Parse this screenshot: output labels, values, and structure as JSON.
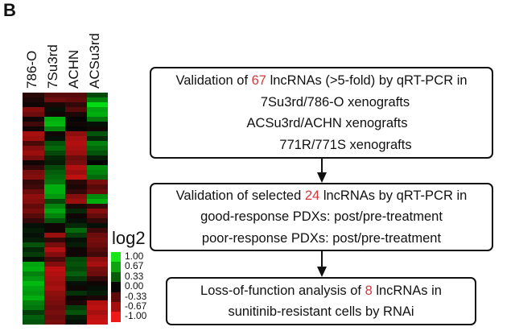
{
  "panel_label": "B",
  "heatmap": {
    "columns": [
      "786-O",
      "7Su3rd",
      "ACHN",
      "ACSu3rd"
    ],
    "rows": [
      [
        -0.15,
        -0.35,
        -0.35,
        0.3
      ],
      [
        -0.1,
        -0.45,
        -0.4,
        0.55
      ],
      [
        -0.05,
        -0.1,
        -0.2,
        0.95
      ],
      [
        -0.55,
        0.05,
        -0.35,
        0.7
      ],
      [
        -0.45,
        -0.05,
        -0.1,
        0.75
      ],
      [
        -0.05,
        0.75,
        0.0,
        0.5
      ],
      [
        -0.25,
        0.8,
        -0.05,
        0.05
      ],
      [
        -0.05,
        0.55,
        0.0,
        -0.05
      ],
      [
        -0.7,
        -0.05,
        -0.6,
        0.35
      ],
      [
        -0.65,
        0.05,
        -0.7,
        0.15
      ],
      [
        -0.3,
        0.35,
        -0.75,
        0.55
      ],
      [
        -0.55,
        0.45,
        -0.7,
        0.45
      ],
      [
        -0.65,
        0.3,
        -0.65,
        0.35
      ],
      [
        -0.5,
        0.15,
        -0.45,
        0.1
      ],
      [
        -0.05,
        0.1,
        -0.5,
        0.0
      ],
      [
        -0.2,
        0.3,
        -0.75,
        0.6
      ],
      [
        -0.5,
        0.4,
        -0.65,
        0.55
      ],
      [
        -0.55,
        0.45,
        -0.8,
        0.45
      ],
      [
        -0.2,
        0.5,
        -0.15,
        -0.5
      ],
      [
        -0.25,
        0.75,
        -0.1,
        -0.35
      ],
      [
        -0.45,
        0.75,
        -0.2,
        -0.45
      ],
      [
        -0.6,
        0.65,
        -0.55,
        0.6
      ],
      [
        -0.55,
        0.3,
        -0.65,
        0.75
      ],
      [
        -0.4,
        0.55,
        -0.1,
        -0.2
      ],
      [
        -0.5,
        0.7,
        0.15,
        -0.55
      ],
      [
        -0.35,
        0.55,
        -0.05,
        -0.4
      ],
      [
        -0.2,
        0.35,
        0.05,
        -0.2
      ],
      [
        0.05,
        -0.05,
        0.15,
        0.05
      ],
      [
        0.1,
        -0.05,
        0.45,
        -0.25
      ],
      [
        0.05,
        -0.65,
        0.25,
        -0.45
      ],
      [
        0.1,
        -0.2,
        0.05,
        -0.5
      ],
      [
        0.35,
        -0.5,
        0.1,
        -0.45
      ],
      [
        0.15,
        -0.75,
        -0.05,
        -0.35
      ],
      [
        0.25,
        -0.55,
        -0.05,
        -0.25
      ],
      [
        0.05,
        -0.3,
        0.3,
        -0.6
      ],
      [
        0.7,
        -0.55,
        0.35,
        -0.7
      ],
      [
        0.75,
        -0.8,
        0.3,
        -0.5
      ],
      [
        0.55,
        -0.75,
        0.4,
        -0.45
      ],
      [
        0.65,
        -0.7,
        0.25,
        -0.2
      ],
      [
        0.8,
        -0.65,
        0.05,
        -0.05
      ],
      [
        0.7,
        -0.7,
        -0.05,
        0.05
      ],
      [
        0.65,
        -0.6,
        0.2,
        0.1
      ],
      [
        0.75,
        -0.55,
        -0.05,
        -0.1
      ],
      [
        0.55,
        -0.5,
        -0.1,
        -0.75
      ],
      [
        0.5,
        -0.45,
        0.25,
        -0.8
      ],
      [
        0.25,
        -0.5,
        0.35,
        -0.7
      ],
      [
        0.4,
        -0.45,
        0.1,
        -0.8
      ],
      [
        0.35,
        -0.5,
        0.05,
        -0.85
      ]
    ]
  },
  "legend": {
    "title": "log2",
    "items": [
      {
        "label": "1.00",
        "color": "#19e619"
      },
      {
        "label": "0.67",
        "color": "#0fa30f"
      },
      {
        "label": "0.33",
        "color": "#0a5c0a"
      },
      {
        "label": "0.00",
        "color": "#050505"
      },
      {
        "label": "-0.33",
        "color": "#5c0a0a"
      },
      {
        "label": "-0.67",
        "color": "#a30f0f"
      },
      {
        "label": "-1.00",
        "color": "#ee1a1a"
      }
    ]
  },
  "flowchart": {
    "highlight_color": "#d0393c",
    "boxes": [
      {
        "lines": [
          {
            "pre": "Validation of ",
            "num": "67",
            "post": " lncRNAs (>5-fold) by qRT-PCR in"
          },
          {
            "pre": "7Su3rd/786-O xenografts",
            "num": "",
            "post": ""
          },
          {
            "pre": "ACSu3rd/ACHN xenografts",
            "num": "",
            "post": ""
          },
          {
            "pre": "771R/771S xenografts",
            "num": "",
            "post": ""
          }
        ]
      },
      {
        "lines": [
          {
            "pre": "Validation of selected ",
            "num": "24",
            "post": " lncRNAs by qRT-PCR in"
          },
          {
            "pre": "good-response PDXs: post/pre-treatment",
            "num": "",
            "post": ""
          },
          {
            "pre": "poor-response PDXs: post/pre-treatment",
            "num": "",
            "post": ""
          }
        ]
      },
      {
        "lines": [
          {
            "pre": "Loss-of-function analysis of ",
            "num": "8",
            "post": " lncRNAs in"
          },
          {
            "pre": "sunitinib-resistant cells by RNAi",
            "num": "",
            "post": ""
          }
        ]
      }
    ]
  }
}
